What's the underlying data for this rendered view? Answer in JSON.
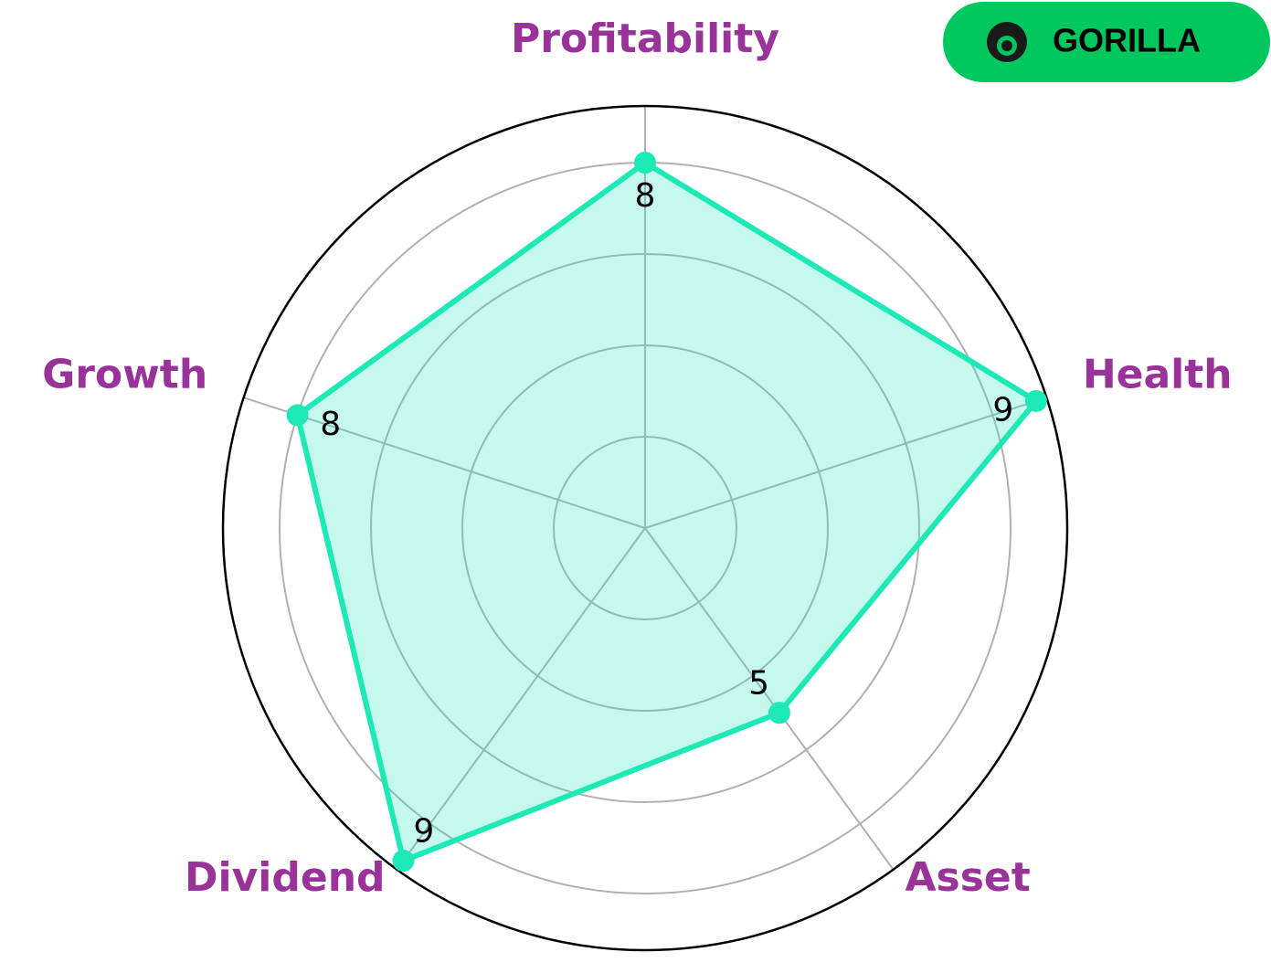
{
  "logo_text": "GORILLA",
  "chart_data": {
    "type": "radar",
    "categories": [
      "Profitability",
      "Health",
      "Asset",
      "Dividend",
      "Growth"
    ],
    "values": [
      8,
      9,
      5,
      9,
      8
    ],
    "color": "#1de9b6",
    "label_color": "#993399",
    "ylim": [
      0,
      9.24
    ],
    "yticks": [
      2,
      4,
      6,
      8
    ],
    "grid": true
  }
}
